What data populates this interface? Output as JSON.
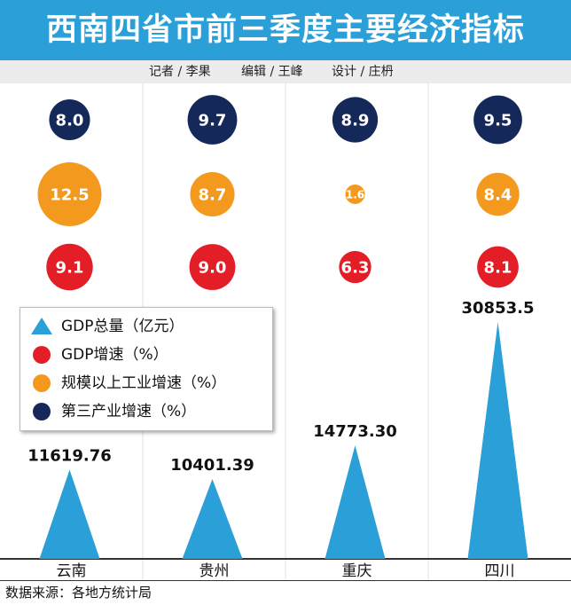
{
  "header": {
    "title": "西南四省市前三季度主要经济指标",
    "credits": [
      "记者 / 李果",
      "编辑 / 王峰",
      "设计 / 庄枬"
    ]
  },
  "colors": {
    "banner": "#2a9fd8",
    "gdp_total": "#2a9fd8",
    "gdp_growth": "#e41e26",
    "industry_growth": "#f39a1e",
    "tertiary_growth": "#14285a"
  },
  "legend": [
    {
      "label": "GDP总量（亿元）",
      "shape": "triangle",
      "color": "#2a9fd8"
    },
    {
      "label": "GDP增速（%）",
      "shape": "circle",
      "color": "#e41e26"
    },
    {
      "label": "规模以上工业增速（%）",
      "shape": "circle",
      "color": "#f39a1e"
    },
    {
      "label": "第三产业增速（%）",
      "shape": "circle",
      "color": "#14285a"
    }
  ],
  "chart_data": {
    "type": "bar",
    "categories": [
      "云南",
      "贵州",
      "重庆",
      "四川"
    ],
    "series": [
      {
        "name": "GDP总量（亿元）",
        "shape": "triangle",
        "color": "#2a9fd8",
        "values": [
          11619.76,
          10401.39,
          14773.3,
          30853.5
        ],
        "labels": [
          "11619.76",
          "10401.39",
          "14773.30",
          "30853.5"
        ]
      },
      {
        "name": "GDP增速（%）",
        "shape": "circle",
        "color": "#e41e26",
        "values": [
          9.1,
          9.0,
          6.3,
          8.1
        ],
        "labels": [
          "9.1",
          "9.0",
          "6.3",
          "8.1"
        ]
      },
      {
        "name": "规模以上工业增速（%）",
        "shape": "circle",
        "color": "#f39a1e",
        "values": [
          12.5,
          8.7,
          1.6,
          8.4
        ],
        "labels": [
          "12.5",
          "8.7",
          "1.6",
          "8.4"
        ]
      },
      {
        "name": "第三产业增速（%）",
        "shape": "circle",
        "color": "#14285a",
        "values": [
          8.0,
          9.7,
          8.9,
          9.5
        ],
        "labels": [
          "8.0",
          "9.7",
          "8.9",
          "9.5"
        ]
      }
    ],
    "grid": false,
    "legend_position": "middle-left"
  },
  "source": "数据来源：各地方统计局"
}
